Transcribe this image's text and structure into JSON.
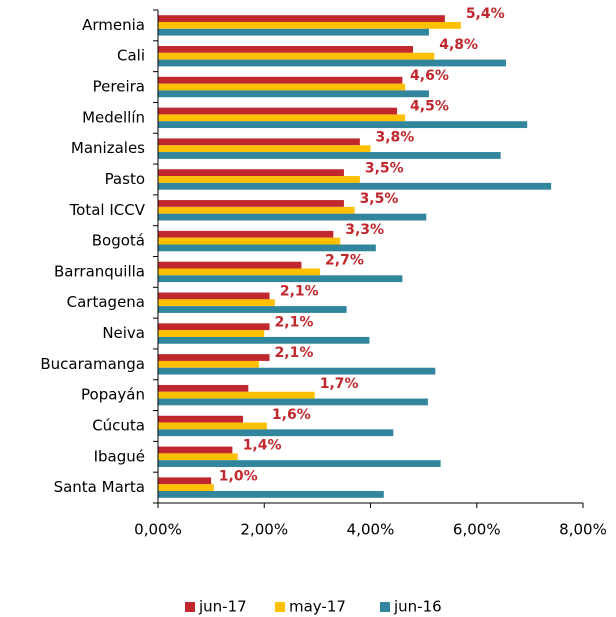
{
  "chart_data": {
    "type": "bar",
    "orientation": "horizontal",
    "categories": [
      "Armenia",
      "Cali",
      "Pereira",
      "Medellín",
      "Manizales",
      "Pasto",
      "Total ICCV",
      "Bogotá",
      "Barranquilla",
      "Cartagena",
      "Neiva",
      "Bucaramanga",
      "Popayán",
      "Cúcuta",
      "Ibagué",
      "Santa Marta"
    ],
    "series": [
      {
        "name": "jun-17",
        "color": "#c0282d",
        "values": [
          5.4,
          4.8,
          4.6,
          4.5,
          3.8,
          3.5,
          3.5,
          3.3,
          2.7,
          2.1,
          2.1,
          2.1,
          1.7,
          1.6,
          1.4,
          1.0
        ],
        "value_labels": [
          "5,4%",
          "4,8%",
          "4,6%",
          "4,5%",
          "3,8%",
          "3,5%",
          "3,5%",
          "3,3%",
          "2,7%",
          "2,1%",
          "2,1%",
          "2,1%",
          "1,7%",
          "1,6%",
          "1,4%",
          "1,0%"
        ]
      },
      {
        "name": "may-17",
        "color": "#ffc000",
        "values": [
          5.7,
          5.2,
          4.65,
          4.65,
          4.0,
          3.8,
          3.7,
          3.43,
          3.05,
          2.2,
          2.0,
          1.9,
          2.95,
          2.05,
          1.5,
          1.05
        ]
      },
      {
        "name": "jun-16",
        "color": "#31859c",
        "values": [
          5.1,
          6.55,
          5.1,
          6.95,
          6.45,
          7.4,
          5.05,
          4.1,
          4.6,
          3.55,
          3.98,
          5.22,
          5.08,
          4.43,
          5.32,
          4.25
        ]
      }
    ],
    "xlim": [
      0,
      8
    ],
    "xticks": [
      {
        "value": 0,
        "label": "0,00%"
      },
      {
        "value": 2,
        "label": "2,00%"
      },
      {
        "value": 4,
        "label": "4,00%"
      },
      {
        "value": 6,
        "label": "6,00%"
      },
      {
        "value": 8,
        "label": "8,00%"
      }
    ],
    "legend": "bottom"
  }
}
